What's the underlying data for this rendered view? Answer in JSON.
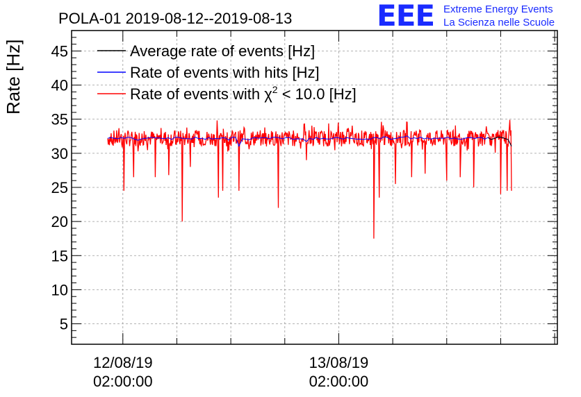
{
  "chart_data": {
    "type": "line",
    "title": "POLA-01 2019-08-12--2019-08-13",
    "ylabel": "Rate [Hz]",
    "xlabel": "",
    "ylim": [
      2,
      48
    ],
    "x_range_hours": [
      -9.5,
      80.5
    ],
    "yticks": [
      "5",
      "10",
      "15",
      "20",
      "25",
      "30",
      "35",
      "40",
      "45"
    ],
    "xticks": [
      {
        "hours": 0,
        "date": "12/08/19",
        "time": "02:00:00"
      },
      {
        "hours": 40,
        "date": "13/08/19",
        "time": "02:00:00"
      }
    ],
    "grid": true,
    "data_start_hours": -2.8,
    "data_end_hours": 72.0,
    "baseline_hz": 32.2,
    "noise_band_hz": [
      30.5,
      34.5
    ],
    "dips": [
      {
        "hours": 0.2,
        "value": 24.5
      },
      {
        "hours": 2.0,
        "value": 26.5
      },
      {
        "hours": 6.0,
        "value": 26.5
      },
      {
        "hours": 8.5,
        "value": 26.8
      },
      {
        "hours": 11.0,
        "value": 20.0
      },
      {
        "hours": 12.5,
        "value": 28.0
      },
      {
        "hours": 17.7,
        "value": 23.5
      },
      {
        "hours": 18.5,
        "value": 24.5
      },
      {
        "hours": 21.5,
        "value": 24.5
      },
      {
        "hours": 28.8,
        "value": 22.0
      },
      {
        "hours": 34.0,
        "value": 29.0
      },
      {
        "hours": 46.5,
        "value": 17.5
      },
      {
        "hours": 47.5,
        "value": 23.5
      },
      {
        "hours": 50.5,
        "value": 25.5
      },
      {
        "hours": 53.5,
        "value": 26.5
      },
      {
        "hours": 56.0,
        "value": 27.0
      },
      {
        "hours": 60.0,
        "value": 26.0
      },
      {
        "hours": 62.5,
        "value": 26.5
      },
      {
        "hours": 65.0,
        "value": 25.0
      },
      {
        "hours": 70.0,
        "value": 24.0
      },
      {
        "hours": 71.2,
        "value": 24.5
      },
      {
        "hours": 72.0,
        "value": 24.5
      }
    ],
    "series": [
      {
        "name": "Average rate of events [Hz]",
        "color": "#000000"
      },
      {
        "name": "Rate of events with hits [Hz]",
        "color": "#0000ff"
      },
      {
        "name": "Rate of events with χ² < 10.0 [Hz]",
        "color": "#ff0000"
      }
    ],
    "legend_labels": [
      {
        "prefix": "Average rate of events [Hz]",
        "chi": "",
        "sup": "",
        "suffix": ""
      },
      {
        "prefix": "Rate of events with hits [Hz]",
        "chi": "",
        "sup": "",
        "suffix": ""
      },
      {
        "prefix": "Rate of events with ",
        "chi": "χ",
        "sup": "2",
        "suffix": " < 10.0 [Hz]"
      }
    ],
    "legend_position": "top-left"
  },
  "logo": {
    "mark": "EEE",
    "line1": "Extreme Energy Events",
    "line2": "La Scienza nelle Scuole",
    "color": "#1a2bff"
  }
}
